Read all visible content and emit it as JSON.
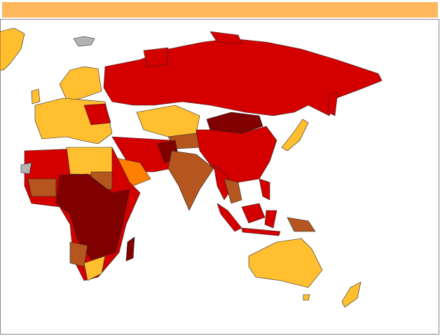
{
  "map": {
    "header_color": "#ffb75e",
    "palette": [
      "#ffbf2f",
      "#d40000",
      "#800000",
      "#b5561e",
      "#ff7f00",
      "#b3b3b3"
    ]
  }
}
